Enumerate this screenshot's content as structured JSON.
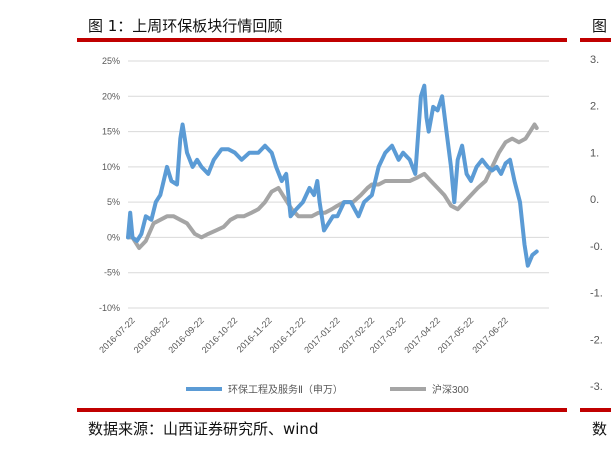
{
  "header": {
    "title": "图 1：上周环保板块行情回顾"
  },
  "footer": {
    "source": "数据来源：山西证券研究所、wind"
  },
  "right_panel": {
    "title_fragment": "图",
    "source_fragment": "数",
    "tick_labels": [
      "3.",
      "2.",
      "1.",
      "0.",
      "-0.",
      "-1.",
      "-2.",
      "-3."
    ]
  },
  "colors": {
    "series_a": "#5b9bd5",
    "series_b": "#a5a5a5",
    "rule": "#c00000",
    "grid": "#d9d9d9"
  },
  "chart_data": {
    "type": "line",
    "title": "",
    "xlabel": "",
    "ylabel": "",
    "ylim": [
      -10,
      25
    ],
    "yticks": [
      -10,
      -5,
      0,
      5,
      10,
      15,
      20,
      25
    ],
    "ytick_labels": [
      "-10%",
      "-5%",
      "0%",
      "5%",
      "10%",
      "15%",
      "20%",
      "25%"
    ],
    "x_range": [
      "2016-07-18",
      "2017-07-31"
    ],
    "xticks": [
      "2016-07-22",
      "2016-08-22",
      "2016-09-22",
      "2016-10-22",
      "2016-11-22",
      "2016-12-22",
      "2017-01-22",
      "2017-02-22",
      "2017-03-22",
      "2017-04-22",
      "2017-05-22",
      "2017-06-22"
    ],
    "grid": true,
    "legend_position": "bottom",
    "series": [
      {
        "name": "环保工程及服务Ⅱ（申万）",
        "color": "#5b9bd5",
        "points": [
          [
            "2016-07-18",
            0
          ],
          [
            "2016-07-20",
            3.5
          ],
          [
            "2016-07-22",
            0
          ],
          [
            "2016-07-26",
            -0.5
          ],
          [
            "2016-07-30",
            0.5
          ],
          [
            "2016-08-03",
            3
          ],
          [
            "2016-08-08",
            2.5
          ],
          [
            "2016-08-12",
            5
          ],
          [
            "2016-08-16",
            6
          ],
          [
            "2016-08-22",
            10
          ],
          [
            "2016-08-26",
            8
          ],
          [
            "2016-08-31",
            7.5
          ],
          [
            "2016-09-03",
            14
          ],
          [
            "2016-09-05",
            16
          ],
          [
            "2016-09-09",
            12
          ],
          [
            "2016-09-14",
            10
          ],
          [
            "2016-09-18",
            11
          ],
          [
            "2016-09-22",
            10
          ],
          [
            "2016-09-28",
            9
          ],
          [
            "2016-10-03",
            11
          ],
          [
            "2016-10-10",
            12.5
          ],
          [
            "2016-10-16",
            12.5
          ],
          [
            "2016-10-22",
            12
          ],
          [
            "2016-10-28",
            11
          ],
          [
            "2016-11-04",
            12
          ],
          [
            "2016-11-12",
            12
          ],
          [
            "2016-11-18",
            13
          ],
          [
            "2016-11-24",
            12
          ],
          [
            "2016-11-28",
            10
          ],
          [
            "2016-12-03",
            8
          ],
          [
            "2016-12-07",
            9
          ],
          [
            "2016-12-11",
            3
          ],
          [
            "2016-12-16",
            4
          ],
          [
            "2016-12-22",
            5
          ],
          [
            "2016-12-28",
            7
          ],
          [
            "2017-01-01",
            6
          ],
          [
            "2017-01-04",
            8
          ],
          [
            "2017-01-06",
            5
          ],
          [
            "2017-01-10",
            1
          ],
          [
            "2017-01-14",
            2
          ],
          [
            "2017-01-18",
            3
          ],
          [
            "2017-01-22",
            3
          ],
          [
            "2017-01-28",
            5
          ],
          [
            "2017-02-03",
            5
          ],
          [
            "2017-02-10",
            3
          ],
          [
            "2017-02-15",
            5
          ],
          [
            "2017-02-22",
            6
          ],
          [
            "2017-02-28",
            10
          ],
          [
            "2017-03-06",
            12
          ],
          [
            "2017-03-12",
            13
          ],
          [
            "2017-03-18",
            11
          ],
          [
            "2017-03-22",
            12
          ],
          [
            "2017-03-28",
            11
          ],
          [
            "2017-04-02",
            9
          ],
          [
            "2017-04-07",
            20
          ],
          [
            "2017-04-10",
            21.5
          ],
          [
            "2017-04-12",
            17
          ],
          [
            "2017-04-14",
            15
          ],
          [
            "2017-04-18",
            18.5
          ],
          [
            "2017-04-22",
            18
          ],
          [
            "2017-04-26",
            20
          ],
          [
            "2017-04-30",
            15
          ],
          [
            "2017-05-04",
            10
          ],
          [
            "2017-05-07",
            5
          ],
          [
            "2017-05-10",
            11
          ],
          [
            "2017-05-14",
            13
          ],
          [
            "2017-05-18",
            9
          ],
          [
            "2017-05-22",
            8
          ],
          [
            "2017-05-27",
            10
          ],
          [
            "2017-06-01",
            11
          ],
          [
            "2017-06-06",
            10
          ],
          [
            "2017-06-10",
            9.5
          ],
          [
            "2017-06-14",
            10
          ],
          [
            "2017-06-18",
            9
          ],
          [
            "2017-06-22",
            10.5
          ],
          [
            "2017-06-26",
            11
          ],
          [
            "2017-06-30",
            8
          ],
          [
            "2017-07-05",
            5
          ],
          [
            "2017-07-09",
            -1
          ],
          [
            "2017-07-12",
            -4
          ],
          [
            "2017-07-16",
            -2.5
          ],
          [
            "2017-07-20",
            -2
          ]
        ]
      },
      {
        "name": "沪深300",
        "color": "#a5a5a5",
        "points": [
          [
            "2016-07-18",
            0
          ],
          [
            "2016-07-22",
            0
          ],
          [
            "2016-07-28",
            -1.5
          ],
          [
            "2016-08-03",
            -0.5
          ],
          [
            "2016-08-10",
            2
          ],
          [
            "2016-08-16",
            2.5
          ],
          [
            "2016-08-22",
            3
          ],
          [
            "2016-08-28",
            3
          ],
          [
            "2016-09-03",
            2.5
          ],
          [
            "2016-09-09",
            2
          ],
          [
            "2016-09-16",
            0.5
          ],
          [
            "2016-09-22",
            0
          ],
          [
            "2016-09-28",
            0.5
          ],
          [
            "2016-10-05",
            1
          ],
          [
            "2016-10-12",
            1.5
          ],
          [
            "2016-10-18",
            2.5
          ],
          [
            "2016-10-24",
            3
          ],
          [
            "2016-10-30",
            3
          ],
          [
            "2016-11-06",
            3.5
          ],
          [
            "2016-11-12",
            4
          ],
          [
            "2016-11-18",
            5
          ],
          [
            "2016-11-24",
            6.5
          ],
          [
            "2016-11-30",
            7
          ],
          [
            "2016-12-06",
            5.5
          ],
          [
            "2016-12-12",
            4
          ],
          [
            "2016-12-18",
            3
          ],
          [
            "2016-12-24",
            3
          ],
          [
            "2016-12-30",
            3
          ],
          [
            "2017-01-05",
            3.5
          ],
          [
            "2017-01-11",
            3.5
          ],
          [
            "2017-01-17",
            4
          ],
          [
            "2017-01-22",
            4.5
          ],
          [
            "2017-01-28",
            5
          ],
          [
            "2017-02-05",
            5
          ],
          [
            "2017-02-12",
            6
          ],
          [
            "2017-02-18",
            7
          ],
          [
            "2017-02-22",
            7.5
          ],
          [
            "2017-02-28",
            7.5
          ],
          [
            "2017-03-06",
            8
          ],
          [
            "2017-03-12",
            8
          ],
          [
            "2017-03-18",
            8
          ],
          [
            "2017-03-22",
            8
          ],
          [
            "2017-03-28",
            8
          ],
          [
            "2017-04-04",
            8.5
          ],
          [
            "2017-04-10",
            9
          ],
          [
            "2017-04-16",
            8
          ],
          [
            "2017-04-22",
            7
          ],
          [
            "2017-04-28",
            6
          ],
          [
            "2017-05-04",
            4.5
          ],
          [
            "2017-05-10",
            4
          ],
          [
            "2017-05-16",
            5
          ],
          [
            "2017-05-22",
            6
          ],
          [
            "2017-05-28",
            7
          ],
          [
            "2017-06-04",
            8
          ],
          [
            "2017-06-10",
            10
          ],
          [
            "2017-06-16",
            12
          ],
          [
            "2017-06-22",
            13.5
          ],
          [
            "2017-06-28",
            14
          ],
          [
            "2017-07-04",
            13.5
          ],
          [
            "2017-07-10",
            14
          ],
          [
            "2017-07-14",
            15
          ],
          [
            "2017-07-18",
            16
          ],
          [
            "2017-07-20",
            15.5
          ]
        ]
      }
    ]
  }
}
